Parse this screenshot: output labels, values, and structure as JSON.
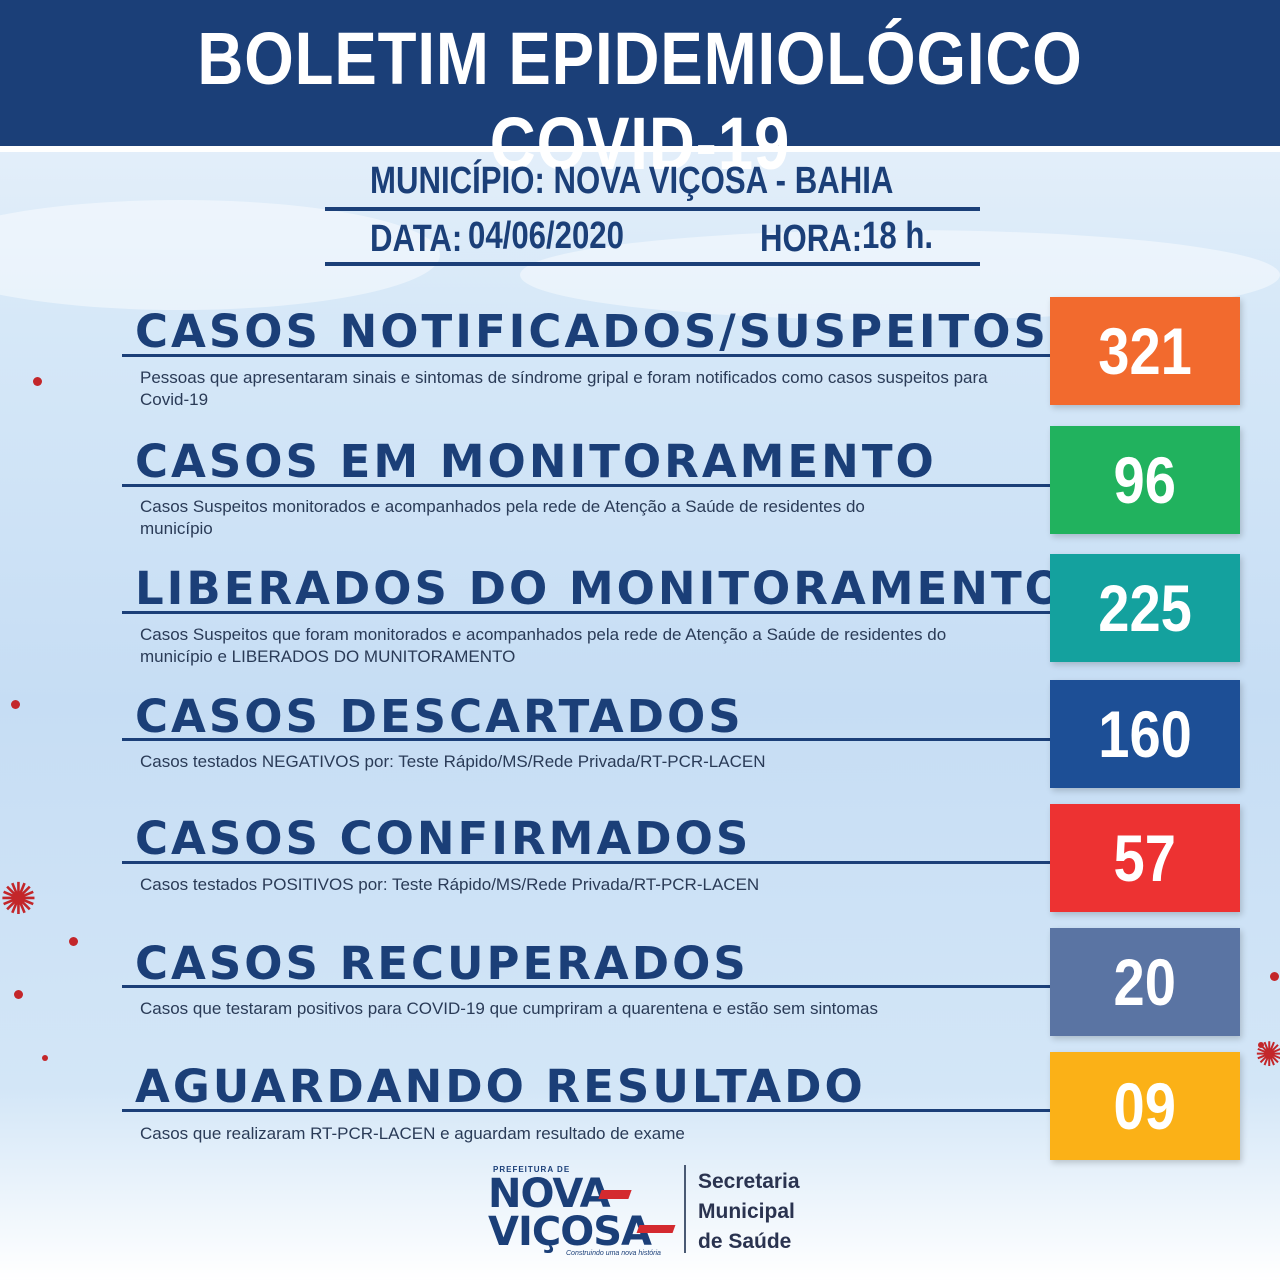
{
  "header": {
    "title": "BOLETIM EPIDEMIOLÓGICO COVID-19"
  },
  "meta": {
    "municipio": "MUNICÍPIO: NOVA VIÇOSA - BAHIA",
    "data_label": "DATA:",
    "data_value": "04/06/2020",
    "hora_label": "HORA:",
    "hora_value": "18 h."
  },
  "rows": [
    {
      "title": "CASOS NOTIFICADOS/SUSPEITOS",
      "description": "Pessoas que apresentaram sinais e sintomas de síndrome gripal e foram notificados como casos suspeitos para Covid-19",
      "value": "321",
      "color": "#f26a2e"
    },
    {
      "title": "CASOS EM MONITORAMENTO",
      "description": "Casos Suspeitos monitorados e acompanhados pela rede de Atenção a Saúde de residentes do município",
      "value": "96",
      "color": "#21b25e"
    },
    {
      "title": "LIBERADOS DO MONITORAMENTO",
      "description": "Casos Suspeitos que foram monitorados e acompanhados pela rede de Atenção a Saúde de residentes do município e LIBERADOS DO MUNITORAMENTO",
      "value": "225",
      "color": "#14a19e"
    },
    {
      "title": "CASOS DESCARTADOS",
      "description": "Casos testados NEGATIVOS por: Teste Rápido/MS/Rede Privada/RT-PCR-LACEN",
      "value": "160",
      "color": "#1d4f96"
    },
    {
      "title": "CASOS CONFIRMADOS",
      "description": "Casos testados POSITIVOS por: Teste Rápido/MS/Rede Privada/RT-PCR-LACEN",
      "value": "57",
      "color": "#ed3232"
    },
    {
      "title": "CASOS RECUPERADOS",
      "description": "Casos que testaram positivos para COVID-19 que cumpriram a quarentena e estão sem sintomas",
      "value": "20",
      "color": "#5a74a3"
    },
    {
      "title": "AGUARDANDO RESULTADO",
      "description": "Casos que realizaram RT-PCR-LACEN e aguardam resultado de exame",
      "value": "09",
      "color": "#fbb117"
    }
  ],
  "footer": {
    "logo_small": "PREFEITURA DE",
    "logo_nova": "NOVA",
    "logo_vicosa": "VIÇOSA",
    "logo_tag": "Construindo uma nova história",
    "secretaria_line1": "Secretaria",
    "secretaria_line2": "Municipal",
    "secretaria_line3": "de Saúde"
  }
}
